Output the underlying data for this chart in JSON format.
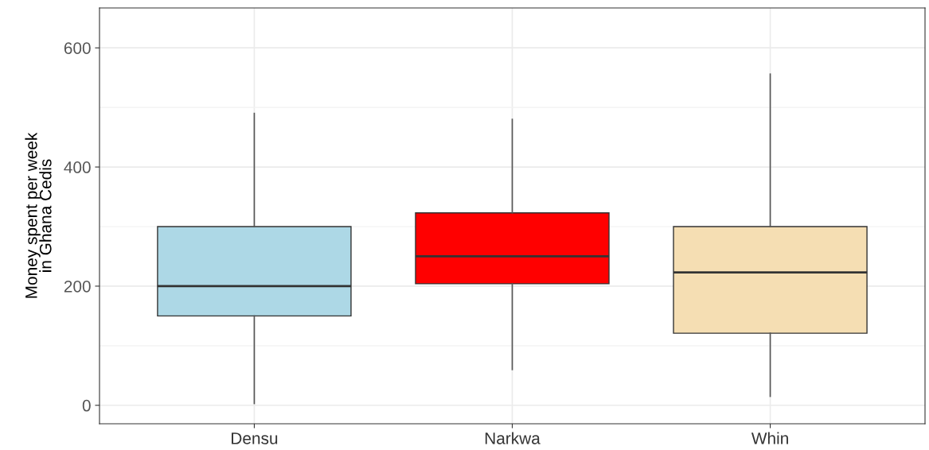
{
  "chart_data": {
    "type": "box",
    "ylabel": "Money spent per week\nin Ghana Cedis",
    "categories": [
      "Densu",
      "Narkwa",
      "Whin"
    ],
    "colors": [
      "#add8e6",
      "#ff0000",
      "#f5deb3"
    ],
    "boxes": [
      {
        "low": 3,
        "q1": 150,
        "median": 200,
        "q3": 300,
        "high": 490
      },
      {
        "low": 60,
        "q1": 204,
        "median": 250,
        "q3": 323,
        "high": 480
      },
      {
        "low": 15,
        "q1": 121,
        "median": 223,
        "q3": 300,
        "high": 556
      }
    ],
    "ylim": [
      -31,
      667
    ],
    "yticks": [
      0,
      {
        "value": 100,
        "label": null
      },
      200,
      {
        "value": 300,
        "label": null
      },
      400,
      {
        "value": 500,
        "label": null
      },
      600
    ],
    "grid": true
  }
}
